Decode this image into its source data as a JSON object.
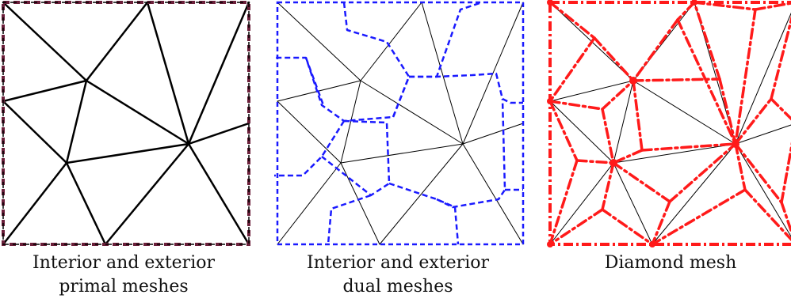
{
  "panels": [
    {
      "caption_lines": [
        "Interior and exterior",
        "primal meshes"
      ],
      "border_colors": [
        "#6b1f3a",
        "#000000"
      ]
    },
    {
      "caption_lines": [
        "Interior and exterior",
        "dual meshes"
      ],
      "dual_color": "#1a1aff"
    },
    {
      "caption_lines": [
        "Diamond mesh"
      ],
      "diamond_color": "#ff1a1a"
    }
  ],
  "colors": {
    "primal": "#000000"
  }
}
